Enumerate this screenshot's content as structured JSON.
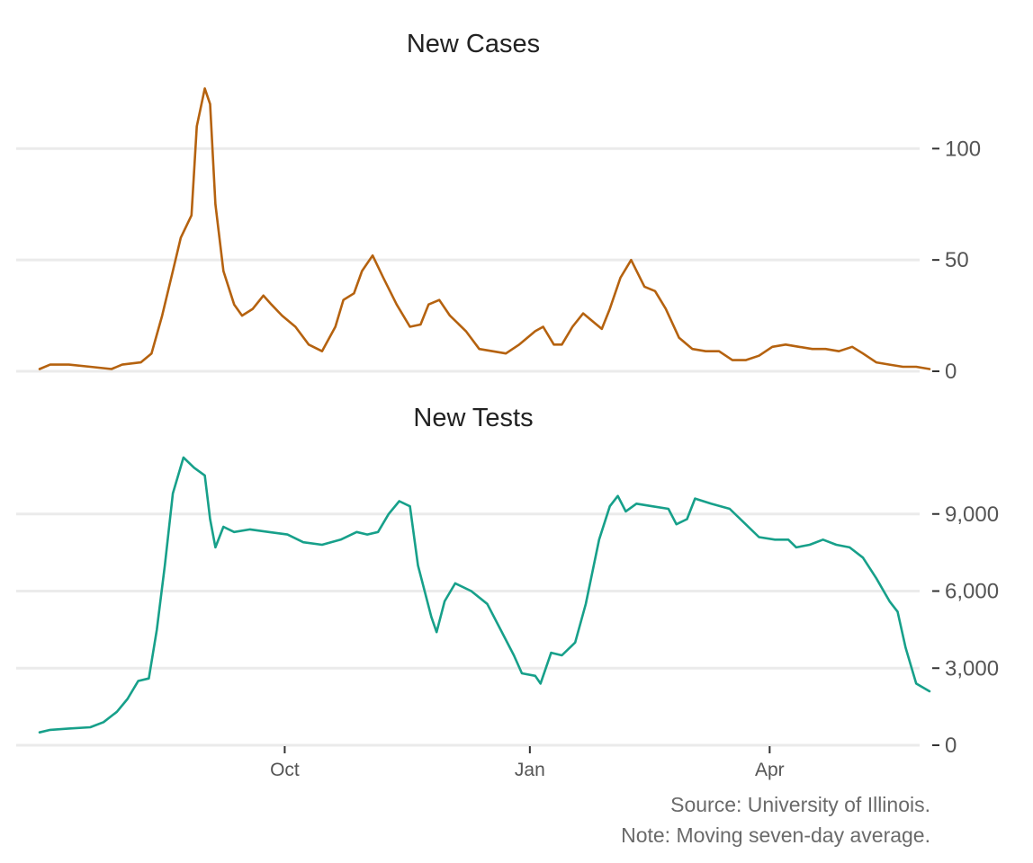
{
  "chart_data": [
    {
      "type": "line",
      "title": "New Cases",
      "ylim": [
        0,
        130
      ],
      "y_ticks": [
        0,
        50,
        100
      ],
      "y_tick_labels": [
        "0",
        "50",
        "100"
      ],
      "color": "#b5620f",
      "x_ticks": [],
      "series": [
        {
          "points": [
            [
              "2020-07-01",
              1
            ],
            [
              "2020-07-05",
              3
            ],
            [
              "2020-07-12",
              3
            ],
            [
              "2020-07-20",
              2
            ],
            [
              "2020-07-28",
              1
            ],
            [
              "2020-08-01",
              3
            ],
            [
              "2020-08-08",
              4
            ],
            [
              "2020-08-12",
              8
            ],
            [
              "2020-08-16",
              25
            ],
            [
              "2020-08-20",
              45
            ],
            [
              "2020-08-23",
              60
            ],
            [
              "2020-08-27",
              70
            ],
            [
              "2020-08-29",
              110
            ],
            [
              "2020-09-01",
              127
            ],
            [
              "2020-09-03",
              120
            ],
            [
              "2020-09-05",
              75
            ],
            [
              "2020-09-08",
              45
            ],
            [
              "2020-09-12",
              30
            ],
            [
              "2020-09-15",
              25
            ],
            [
              "2020-09-19",
              28
            ],
            [
              "2020-09-23",
              34
            ],
            [
              "2020-09-26",
              30
            ],
            [
              "2020-09-30",
              25
            ],
            [
              "2020-10-05",
              20
            ],
            [
              "2020-10-10",
              12
            ],
            [
              "2020-10-15",
              9
            ],
            [
              "2020-10-20",
              20
            ],
            [
              "2020-10-23",
              32
            ],
            [
              "2020-10-27",
              35
            ],
            [
              "2020-10-30",
              45
            ],
            [
              "2020-11-03",
              52
            ],
            [
              "2020-11-07",
              42
            ],
            [
              "2020-11-12",
              30
            ],
            [
              "2020-11-17",
              20
            ],
            [
              "2020-11-21",
              21
            ],
            [
              "2020-11-24",
              30
            ],
            [
              "2020-11-28",
              32
            ],
            [
              "2020-12-02",
              25
            ],
            [
              "2020-12-08",
              18
            ],
            [
              "2020-12-13",
              10
            ],
            [
              "2020-12-18",
              9
            ],
            [
              "2020-12-23",
              8
            ],
            [
              "2020-12-28",
              12
            ],
            [
              "2021-01-03",
              18
            ],
            [
              "2021-01-06",
              20
            ],
            [
              "2021-01-10",
              12
            ],
            [
              "2021-01-13",
              12
            ],
            [
              "2021-01-17",
              20
            ],
            [
              "2021-01-21",
              26
            ],
            [
              "2021-01-25",
              22
            ],
            [
              "2021-01-28",
              19
            ],
            [
              "2021-01-31",
              28
            ],
            [
              "2021-02-04",
              42
            ],
            [
              "2021-02-08",
              50
            ],
            [
              "2021-02-13",
              38
            ],
            [
              "2021-02-17",
              36
            ],
            [
              "2021-02-21",
              28
            ],
            [
              "2021-02-26",
              15
            ],
            [
              "2021-03-03",
              10
            ],
            [
              "2021-03-08",
              9
            ],
            [
              "2021-03-13",
              9
            ],
            [
              "2021-03-18",
              5
            ],
            [
              "2021-03-23",
              5
            ],
            [
              "2021-03-28",
              7
            ],
            [
              "2021-04-02",
              11
            ],
            [
              "2021-04-07",
              12
            ],
            [
              "2021-04-12",
              11
            ],
            [
              "2021-04-17",
              10
            ],
            [
              "2021-04-22",
              10
            ],
            [
              "2021-04-27",
              9
            ],
            [
              "2021-05-02",
              11
            ],
            [
              "2021-05-06",
              8
            ],
            [
              "2021-05-11",
              4
            ],
            [
              "2021-05-16",
              3
            ],
            [
              "2021-05-21",
              2
            ],
            [
              "2021-05-26",
              2
            ],
            [
              "2021-05-31",
              1
            ]
          ]
        }
      ]
    },
    {
      "type": "line",
      "title": "New Tests",
      "ylim": [
        0,
        12000
      ],
      "y_ticks": [
        0,
        3000,
        6000,
        9000
      ],
      "y_tick_labels": [
        "0",
        "3,000",
        "6,000",
        "9,000"
      ],
      "color": "#17a08a",
      "x_ticks": [
        "2020-10-01",
        "2021-01-01",
        "2021-04-01"
      ],
      "x_tick_labels": [
        "Oct",
        "Jan",
        "Apr"
      ],
      "series": [
        {
          "points": [
            [
              "2020-07-01",
              500
            ],
            [
              "2020-07-05",
              600
            ],
            [
              "2020-07-12",
              650
            ],
            [
              "2020-07-20",
              700
            ],
            [
              "2020-07-25",
              900
            ],
            [
              "2020-07-30",
              1300
            ],
            [
              "2020-08-03",
              1800
            ],
            [
              "2020-08-07",
              2500
            ],
            [
              "2020-08-11",
              2600
            ],
            [
              "2020-08-14",
              4500
            ],
            [
              "2020-08-17",
              7000
            ],
            [
              "2020-08-20",
              9800
            ],
            [
              "2020-08-24",
              11200
            ],
            [
              "2020-08-28",
              10800
            ],
            [
              "2020-09-01",
              10500
            ],
            [
              "2020-09-03",
              8800
            ],
            [
              "2020-09-05",
              7700
            ],
            [
              "2020-09-08",
              8500
            ],
            [
              "2020-09-12",
              8300
            ],
            [
              "2020-09-18",
              8400
            ],
            [
              "2020-09-25",
              8300
            ],
            [
              "2020-10-02",
              8200
            ],
            [
              "2020-10-08",
              7900
            ],
            [
              "2020-10-15",
              7800
            ],
            [
              "2020-10-22",
              8000
            ],
            [
              "2020-10-28",
              8300
            ],
            [
              "2020-11-01",
              8200
            ],
            [
              "2020-11-05",
              8300
            ],
            [
              "2020-11-09",
              9000
            ],
            [
              "2020-11-13",
              9500
            ],
            [
              "2020-11-17",
              9300
            ],
            [
              "2020-11-20",
              7000
            ],
            [
              "2020-11-25",
              5000
            ],
            [
              "2020-11-27",
              4400
            ],
            [
              "2020-11-30",
              5600
            ],
            [
              "2020-12-04",
              6300
            ],
            [
              "2020-12-10",
              6000
            ],
            [
              "2020-12-16",
              5500
            ],
            [
              "2020-12-21",
              4500
            ],
            [
              "2020-12-26",
              3500
            ],
            [
              "2020-12-29",
              2800
            ],
            [
              "2021-01-03",
              2700
            ],
            [
              "2021-01-05",
              2400
            ],
            [
              "2021-01-09",
              3600
            ],
            [
              "2021-01-13",
              3500
            ],
            [
              "2021-01-18",
              4000
            ],
            [
              "2021-01-22",
              5500
            ],
            [
              "2021-01-27",
              8000
            ],
            [
              "2021-01-31",
              9300
            ],
            [
              "2021-02-03",
              9700
            ],
            [
              "2021-02-06",
              9100
            ],
            [
              "2021-02-10",
              9400
            ],
            [
              "2021-02-16",
              9300
            ],
            [
              "2021-02-22",
              9200
            ],
            [
              "2021-02-25",
              8600
            ],
            [
              "2021-03-01",
              8800
            ],
            [
              "2021-03-04",
              9600
            ],
            [
              "2021-03-10",
              9400
            ],
            [
              "2021-03-17",
              9200
            ],
            [
              "2021-03-23",
              8600
            ],
            [
              "2021-03-28",
              8100
            ],
            [
              "2021-04-03",
              8000
            ],
            [
              "2021-04-08",
              8000
            ],
            [
              "2021-04-11",
              7700
            ],
            [
              "2021-04-16",
              7800
            ],
            [
              "2021-04-21",
              8000
            ],
            [
              "2021-04-26",
              7800
            ],
            [
              "2021-05-01",
              7700
            ],
            [
              "2021-05-06",
              7300
            ],
            [
              "2021-05-11",
              6500
            ],
            [
              "2021-05-16",
              5600
            ],
            [
              "2021-05-19",
              5200
            ],
            [
              "2021-05-22",
              3800
            ],
            [
              "2021-05-26",
              2400
            ],
            [
              "2021-05-31",
              2100
            ]
          ]
        }
      ]
    }
  ],
  "source_note": "Source: University of Illinois.",
  "note": "Note: Moving seven-day average."
}
